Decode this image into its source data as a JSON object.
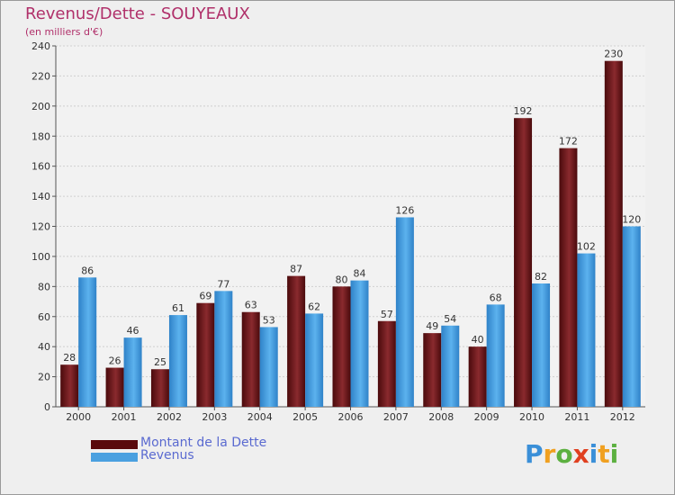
{
  "chart_data": {
    "type": "bar",
    "title": "Revenus/Dette - SOUYEAUX",
    "subtitle": "(en milliers d'€)",
    "xlabel": "",
    "ylabel": "",
    "ylim": [
      0,
      240
    ],
    "yticks": [
      "0",
      "20",
      "40",
      "60",
      "80",
      "100",
      "120",
      "140",
      "160",
      "180",
      "200",
      "220",
      "240"
    ],
    "categories": [
      "2000",
      "2001",
      "2002",
      "2003",
      "2004",
      "2005",
      "2006",
      "2007",
      "2008",
      "2009",
      "2010",
      "2011",
      "2012"
    ],
    "series": [
      {
        "name": "Montant de la Dette",
        "color": "#7a1f22",
        "values": [
          28,
          26,
          25,
          69,
          63,
          87,
          80,
          57,
          49,
          40,
          192,
          172,
          230
        ]
      },
      {
        "name": "Revenus",
        "color": "#4aa0e0",
        "values": [
          86,
          46,
          61,
          77,
          53,
          62,
          84,
          126,
          54,
          68,
          82,
          102,
          120
        ]
      }
    ],
    "grid": true,
    "legend": "bottom-left"
  },
  "logo": {
    "letters": [
      "P",
      "r",
      "o",
      "x",
      "i",
      "t",
      "i"
    ],
    "colors": [
      "#3a8fd8",
      "#f0a020",
      "#5cb040",
      "#e04020",
      "#3a8fd8",
      "#f0a020",
      "#5cb040"
    ]
  }
}
